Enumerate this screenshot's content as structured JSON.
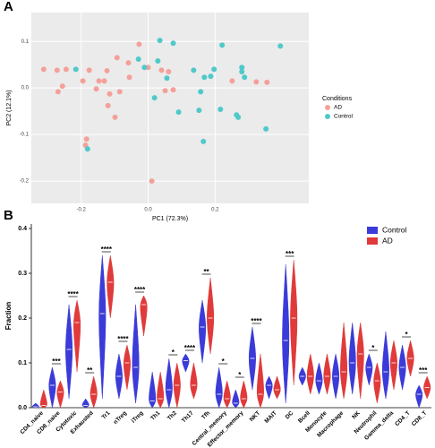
{
  "chart_data": [
    {
      "type": "scatter",
      "panel_label": "A",
      "xlabel": "PC1 (72.3%)",
      "ylabel": "PC2 (12.1%)",
      "xlim": [
        -0.349,
        0.48
      ],
      "ylim": [
        -0.248,
        0.162
      ],
      "xticks": [
        -0.2,
        {
          "value": 0,
          "label": "0.0"
        },
        0.2
      ],
      "yticks": [
        -0.2,
        -0.1,
        {
          "value": 0,
          "label": "0.0"
        },
        0.1
      ],
      "legend_title": "Conditions",
      "series": [
        {
          "name": "AD",
          "color": "#f4a09a",
          "x": [
            -0.027,
            -0.093,
            -0.176,
            -0.147,
            -0.272,
            -0.245,
            -0.312,
            -0.195,
            -0.131,
            -0.155,
            -0.123,
            -0.115,
            -0.059,
            -0.056,
            -0.12,
            -0.099,
            -0.085,
            -0.256,
            -0.269,
            0.0,
            0.061,
            0.051,
            0.075,
            0.04,
            0.011,
            -0.184,
            -0.187,
            0.251,
            0.323,
            0.355
          ],
          "y": [
            0.094,
            0.065,
            0.038,
            0.015,
            0.038,
            0.04,
            0.04,
            0.015,
            0.015,
            -0.002,
            0.037,
            -0.013,
            0.054,
            0.023,
            -0.038,
            -0.063,
            -0.008,
            0.004,
            -0.008,
            0.044,
            0.035,
            -0.006,
            -0.004,
            0.038,
            -0.2,
            -0.11,
            -0.123,
            0.015,
            0.013,
            0.012
          ]
        },
        {
          "name": "Control",
          "color": "#4fc9c9",
          "x": [
            -0.216,
            0.035,
            -0.029,
            -0.011,
            0.075,
            0.029,
            0.056,
            0.019,
            0.168,
            0.197,
            0.221,
            0.28,
            0.288,
            0.28,
            0.264,
            0.269,
            0.216,
            0.165,
            0.352,
            0.395,
            0.091,
            -0.181,
            0.136,
            0.152,
            0.157,
            0.187
          ],
          "y": [
            0.04,
            0.102,
            0.062,
            0.044,
            0.096,
            0.058,
            0.021,
            -0.021,
            0.023,
            0.04,
            0.092,
            0.044,
            0.023,
            0.035,
            -0.058,
            -0.063,
            -0.046,
            -0.115,
            -0.088,
            0.09,
            -0.052,
            -0.131,
            0.038,
            -0.048,
            -0.008,
            0.025
          ]
        }
      ]
    },
    {
      "type": "violin",
      "panel_label": "B",
      "ylabel": "Fraction",
      "ylim": [
        0,
        0.41
      ],
      "yticks": [
        {
          "value": 0,
          "label": "0.0"
        },
        0.1,
        0.2,
        0.3,
        0.4
      ],
      "categories": [
        "CD4_naive",
        "CD8_naive",
        "Cytotoxic",
        "Exhausted",
        "Tr1",
        "nTreg",
        "iTreg",
        "Th1",
        "Th2",
        "Th17",
        "Tfh",
        "Central_memory",
        "Effector_memory",
        "NKT",
        "MAIT",
        "DC",
        "Bcell",
        "Monocyte",
        "Macrophage",
        "NK",
        "Neutrophil",
        "Gamma_delta",
        "CD4_T",
        "CD8_T"
      ],
      "significance": [
        null,
        "***",
        "****",
        "**",
        "****",
        "****",
        "****",
        null,
        "*",
        "****",
        "**",
        "*",
        "*",
        "****",
        null,
        "***",
        null,
        null,
        null,
        null,
        "*",
        null,
        "*",
        "***"
      ],
      "series": [
        {
          "name": "Control",
          "color": "#3b3bd9",
          "min": [
            0,
            0,
            0.02,
            0,
            0.02,
            0.02,
            0.01,
            0,
            0,
            0.08,
            0.1,
            0,
            0,
            0.04,
            0.02,
            0.01,
            0.05,
            0.03,
            0.02,
            0.03,
            0.05,
            0.02,
            0.04,
            0
          ],
          "median": [
            0.002,
            0.05,
            0.13,
            0.005,
            0.21,
            0.07,
            0.09,
            0.015,
            0.04,
            0.105,
            0.18,
            0.03,
            0.01,
            0.11,
            0.05,
            0.15,
            0.07,
            0.06,
            0.07,
            0.1,
            0.09,
            0.08,
            0.09,
            0.03
          ],
          "max": [
            0.01,
            0.09,
            0.23,
            0.02,
            0.34,
            0.12,
            0.23,
            0.08,
            0.11,
            0.12,
            0.24,
            0.09,
            0.04,
            0.18,
            0.07,
            0.32,
            0.09,
            0.1,
            0.12,
            0.19,
            0.12,
            0.17,
            0.14,
            0.05
          ]
        },
        {
          "name": "AD",
          "color": "#e03a3a",
          "min": [
            0,
            0,
            0.08,
            0,
            0.2,
            0.04,
            0.16,
            0,
            0,
            0.02,
            0.12,
            0,
            0,
            0,
            0.02,
            0.05,
            0.03,
            0.03,
            0.02,
            0.02,
            0.01,
            0.04,
            0.07,
            0.02
          ],
          "median": [
            0.005,
            0.035,
            0.19,
            0.03,
            0.28,
            0.1,
            0.23,
            0.02,
            0.05,
            0.05,
            0.2,
            0.02,
            0.02,
            0.03,
            0.04,
            0.2,
            0.07,
            0.07,
            0.08,
            0.12,
            0.06,
            0.1,
            0.11,
            0.045
          ],
          "max": [
            0.04,
            0.06,
            0.24,
            0.07,
            0.34,
            0.14,
            0.25,
            0.08,
            0.1,
            0.1,
            0.29,
            0.06,
            0.06,
            0.12,
            0.07,
            0.33,
            0.12,
            0.12,
            0.19,
            0.19,
            0.1,
            0.15,
            0.15,
            0.07
          ]
        }
      ]
    }
  ]
}
